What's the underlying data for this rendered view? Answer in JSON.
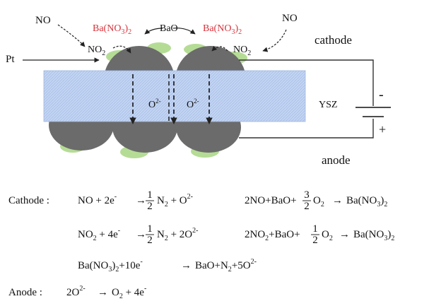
{
  "diagram": {
    "no_left": "NO",
    "no_right": "NO",
    "no2_left": "NO",
    "no2_right": "NO",
    "sub_2": "2",
    "sub_3": "3",
    "bano3_left_prefix": "Ba(NO",
    "bano3_right_prefix": "Ba(NO",
    "close_paren": ")",
    "bao": "BaO",
    "pt": "Pt",
    "cathode": "cathode",
    "anode": "anode",
    "ysz": "YSZ",
    "o_ion_left": "O",
    "o_ion_right": "O",
    "charge_2minus": "2-",
    "minus_sign": "-",
    "plus_sign": "+",
    "colors": {
      "electrolyte": "#b9cdf0",
      "electrode": "#6b6b6b",
      "bao_particle": "#b5dc95",
      "bano3_text": "#d9323a"
    }
  },
  "equations": {
    "cathode_label": "Cathode :",
    "anode_label": "Anode :",
    "c1_left": "NO + 2e",
    "c1_arrow": "→",
    "c1_right": "N",
    "c1_right_tail": " + O",
    "c2_left": "2NO+BaO+",
    "c2_mid": "O",
    "c2_right": "Ba(NO",
    "c3_left": "NO",
    "c3_mid": " + 4e",
    "c3_right": "N",
    "c3_right_tail": " + 2O",
    "c4_left": "2NO",
    "c4_mid": "+BaO+",
    "c4_o2": "O",
    "c4_right": "Ba(NO",
    "c5_left": "Ba(NO",
    "c5_mid": "+10e",
    "c5_right": "BaO+N",
    "c5_tail": "+5O",
    "a1_left": "2O",
    "a1_right": "O",
    "a1_tail": " + 4e",
    "frac_1": "1",
    "frac_3": "3",
    "frac_den": "2",
    "minus_sup": "-",
    "charge": "2-",
    "sub_2": "2",
    "sub_3": "3",
    "close_paren": ")"
  }
}
